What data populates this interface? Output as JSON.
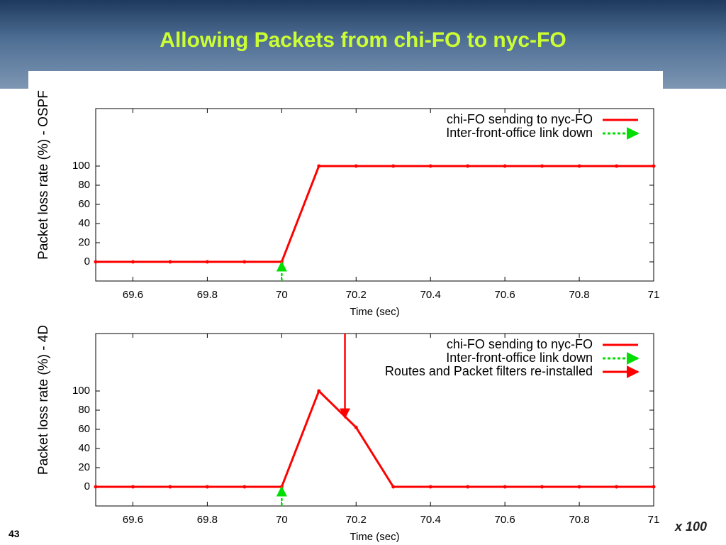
{
  "slide": {
    "title": "Allowing Packets from chi-FO to nyc-FO",
    "page_number": "43",
    "logo_text": "x 100"
  },
  "chart_data": [
    {
      "type": "line",
      "xlabel": "Time (sec)",
      "ylabel": "Packet loss rate (%) - OSPF",
      "xlim": [
        69.5,
        71
      ],
      "xticks": [
        69.6,
        69.8,
        70,
        70.2,
        70.4,
        70.6,
        70.8,
        71
      ],
      "ylim": [
        -20,
        160
      ],
      "yticks": [
        0,
        20,
        40,
        60,
        80,
        100
      ],
      "grid": false,
      "legend": "top-right",
      "series": [
        {
          "name": "chi-FO sending to nyc-FO",
          "color": "#ff0000",
          "style": "solid",
          "x": [
            69.5,
            69.6,
            69.7,
            69.8,
            69.9,
            70.0,
            70.1,
            70.2,
            70.3,
            70.4,
            70.5,
            70.6,
            70.7,
            70.8,
            70.9,
            71.0
          ],
          "values": [
            0,
            0,
            0,
            0,
            0,
            0,
            100,
            100,
            100,
            100,
            100,
            100,
            100,
            100,
            100,
            100
          ]
        },
        {
          "name": "Inter-front-office link down",
          "color": "#00dd00",
          "style": "dashed-arrow",
          "x": [
            70,
            70
          ],
          "values": [
            -20,
            0
          ]
        }
      ]
    },
    {
      "type": "line",
      "xlabel": "Time (sec)",
      "ylabel": "Packet loss rate (%) - 4D",
      "xlim": [
        69.5,
        71
      ],
      "xticks": [
        69.6,
        69.8,
        70,
        70.2,
        70.4,
        70.6,
        70.8,
        71
      ],
      "ylim": [
        -20,
        160
      ],
      "yticks": [
        0,
        20,
        40,
        60,
        80,
        100
      ],
      "grid": false,
      "legend": "top-right",
      "series": [
        {
          "name": "chi-FO sending to nyc-FO",
          "color": "#ff0000",
          "style": "solid",
          "x": [
            69.5,
            69.6,
            69.7,
            69.8,
            69.9,
            70.0,
            70.1,
            70.2,
            70.3,
            70.4,
            70.5,
            70.6,
            70.7,
            70.8,
            70.9,
            71.0
          ],
          "values": [
            0,
            0,
            0,
            0,
            0,
            0,
            100,
            62,
            0,
            0,
            0,
            0,
            0,
            0,
            0,
            0
          ]
        },
        {
          "name": "Inter-front-office link down",
          "color": "#00dd00",
          "style": "dashed-arrow",
          "x": [
            70,
            70
          ],
          "values": [
            -20,
            0
          ]
        },
        {
          "name": "Routes and Packet filters re-installed",
          "color": "#ff0000",
          "style": "arrow",
          "x": [
            70.17,
            70.17
          ],
          "values": [
            160,
            72
          ]
        }
      ]
    }
  ]
}
